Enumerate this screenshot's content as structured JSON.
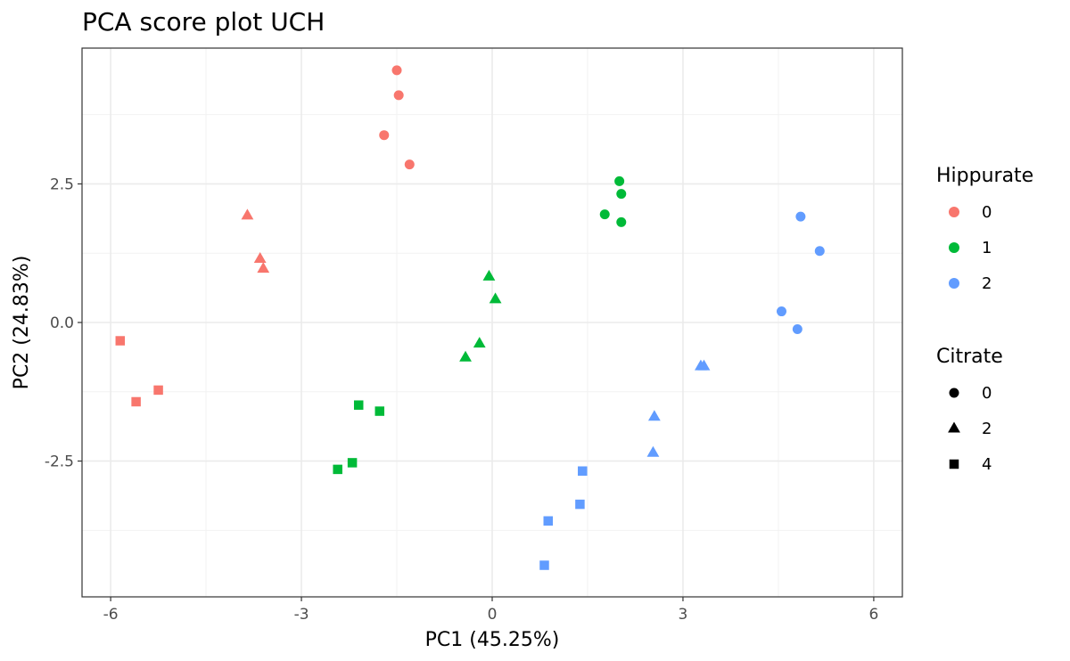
{
  "chart_data": {
    "type": "scatter",
    "title": "PCA score plot UCH",
    "xlabel": "PC1 (45.25%)",
    "ylabel": "PC2 (24.83%)",
    "xlim": [
      -6.45,
      6.45
    ],
    "ylim": [
      -4.95,
      4.95
    ],
    "x_ticks": [
      -6,
      -3,
      0,
      3,
      6
    ],
    "x_tick_labels": [
      "-6",
      "-3",
      "0",
      "3",
      "6"
    ],
    "y_ticks": [
      -2.5,
      0.0,
      2.5
    ],
    "y_tick_labels": [
      "-2.5",
      "0.0",
      "2.5"
    ],
    "grid": true,
    "legend_position": "right",
    "legends": [
      {
        "title": "Hippurate",
        "kind": "color",
        "entries": [
          {
            "label": "0",
            "color": "#F8766D"
          },
          {
            "label": "1",
            "color": "#00BA38"
          },
          {
            "label": "2",
            "color": "#619CFF"
          }
        ]
      },
      {
        "title": "Citrate",
        "kind": "shape",
        "entries": [
          {
            "label": "0",
            "shape": "circle"
          },
          {
            "label": "2",
            "shape": "triangle"
          },
          {
            "label": "4",
            "shape": "square"
          }
        ]
      }
    ],
    "points": [
      {
        "x": -1.5,
        "y": 4.55,
        "hippurate": "0",
        "citrate": "0"
      },
      {
        "x": -1.47,
        "y": 4.1,
        "hippurate": "0",
        "citrate": "0"
      },
      {
        "x": -1.7,
        "y": 3.38,
        "hippurate": "0",
        "citrate": "0"
      },
      {
        "x": -1.3,
        "y": 2.85,
        "hippurate": "0",
        "citrate": "0"
      },
      {
        "x": -3.85,
        "y": 1.93,
        "hippurate": "0",
        "citrate": "2"
      },
      {
        "x": -3.65,
        "y": 1.15,
        "hippurate": "0",
        "citrate": "2"
      },
      {
        "x": -3.6,
        "y": 0.97,
        "hippurate": "0",
        "citrate": "2"
      },
      {
        "x": -5.85,
        "y": -0.33,
        "hippurate": "0",
        "citrate": "4"
      },
      {
        "x": -5.25,
        "y": -1.22,
        "hippurate": "0",
        "citrate": "4"
      },
      {
        "x": -5.6,
        "y": -1.43,
        "hippurate": "0",
        "citrate": "4"
      },
      {
        "x": 2.0,
        "y": 2.55,
        "hippurate": "1",
        "citrate": "0"
      },
      {
        "x": 2.03,
        "y": 2.32,
        "hippurate": "1",
        "citrate": "0"
      },
      {
        "x": 1.77,
        "y": 1.95,
        "hippurate": "1",
        "citrate": "0"
      },
      {
        "x": 2.03,
        "y": 1.81,
        "hippurate": "1",
        "citrate": "0"
      },
      {
        "x": -0.05,
        "y": 0.83,
        "hippurate": "1",
        "citrate": "2"
      },
      {
        "x": 0.05,
        "y": 0.42,
        "hippurate": "1",
        "citrate": "2"
      },
      {
        "x": -0.2,
        "y": -0.38,
        "hippurate": "1",
        "citrate": "2"
      },
      {
        "x": -0.42,
        "y": -0.63,
        "hippurate": "1",
        "citrate": "2"
      },
      {
        "x": -2.1,
        "y": -1.49,
        "hippurate": "1",
        "citrate": "4"
      },
      {
        "x": -1.77,
        "y": -1.6,
        "hippurate": "1",
        "citrate": "4"
      },
      {
        "x": -2.2,
        "y": -2.53,
        "hippurate": "1",
        "citrate": "4"
      },
      {
        "x": -2.43,
        "y": -2.65,
        "hippurate": "1",
        "citrate": "4"
      },
      {
        "x": 4.85,
        "y": 1.91,
        "hippurate": "2",
        "citrate": "0"
      },
      {
        "x": 5.15,
        "y": 1.29,
        "hippurate": "2",
        "citrate": "0"
      },
      {
        "x": 4.55,
        "y": 0.2,
        "hippurate": "2",
        "citrate": "0"
      },
      {
        "x": 4.8,
        "y": -0.12,
        "hippurate": "2",
        "citrate": "0"
      },
      {
        "x": 3.28,
        "y": -0.79,
        "hippurate": "2",
        "citrate": "2"
      },
      {
        "x": 3.33,
        "y": -0.79,
        "hippurate": "2",
        "citrate": "2"
      },
      {
        "x": 2.55,
        "y": -1.7,
        "hippurate": "2",
        "citrate": "2"
      },
      {
        "x": 2.53,
        "y": -2.35,
        "hippurate": "2",
        "citrate": "2"
      },
      {
        "x": 1.42,
        "y": -2.68,
        "hippurate": "2",
        "citrate": "4"
      },
      {
        "x": 1.38,
        "y": -3.28,
        "hippurate": "2",
        "citrate": "4"
      },
      {
        "x": 0.88,
        "y": -3.58,
        "hippurate": "2",
        "citrate": "4"
      },
      {
        "x": 0.82,
        "y": -4.38,
        "hippurate": "2",
        "citrate": "4"
      }
    ]
  }
}
